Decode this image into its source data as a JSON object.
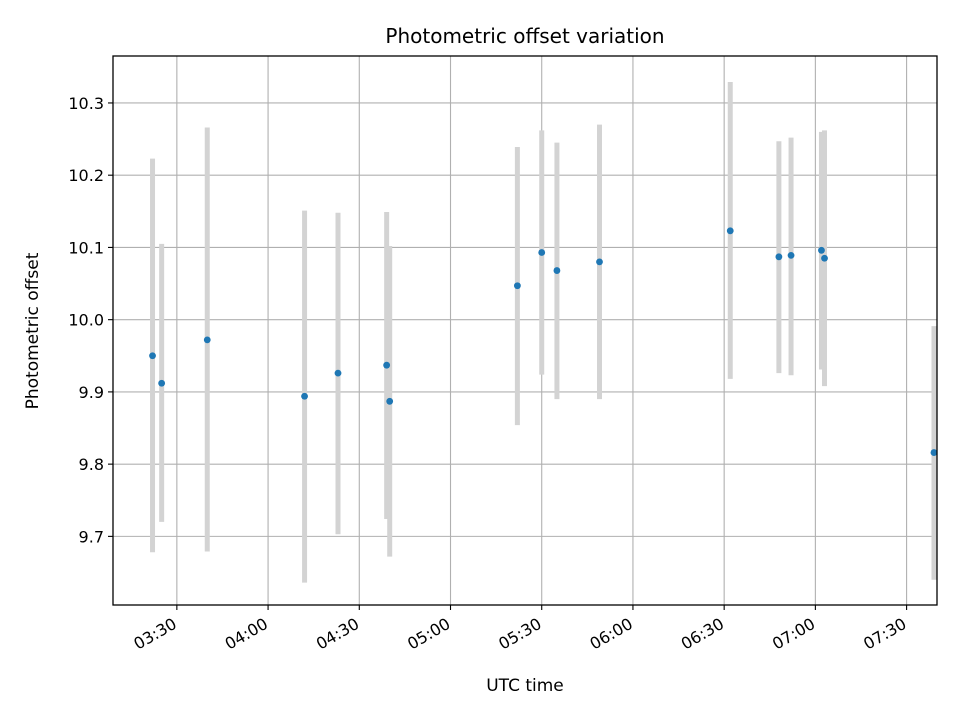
{
  "chart_data": {
    "type": "scatter",
    "title": "Photometric offset variation",
    "xlabel": "UTC time",
    "ylabel": "Photometric offset",
    "grid": true,
    "ylim": [
      9.605,
      10.365
    ],
    "xlim": [
      "03:09",
      "07:40"
    ],
    "x_ticks": [
      "03:30",
      "04:00",
      "04:30",
      "05:00",
      "05:30",
      "06:00",
      "06:30",
      "07:00",
      "07:30"
    ],
    "y_ticks": [
      "9.7",
      "9.8",
      "9.9",
      "10.0",
      "10.1",
      "10.2",
      "10.3"
    ],
    "marker_color": "#1f77b4",
    "errorbar_color": "#d3d3d3",
    "points": [
      {
        "x": "03:22",
        "y": 9.95,
        "ylow": 9.678,
        "yhigh": 10.223
      },
      {
        "x": "03:25",
        "y": 9.912,
        "ylow": 9.72,
        "yhigh": 10.105
      },
      {
        "x": "03:40",
        "y": 9.972,
        "ylow": 9.679,
        "yhigh": 10.266
      },
      {
        "x": "04:12",
        "y": 9.894,
        "ylow": 9.636,
        "yhigh": 10.151
      },
      {
        "x": "04:23",
        "y": 9.926,
        "ylow": 9.703,
        "yhigh": 10.148
      },
      {
        "x": "04:39",
        "y": 9.937,
        "ylow": 9.724,
        "yhigh": 10.149
      },
      {
        "x": "04:40",
        "y": 9.887,
        "ylow": 9.672,
        "yhigh": 10.102
      },
      {
        "x": "05:22",
        "y": 10.047,
        "ylow": 9.854,
        "yhigh": 10.239
      },
      {
        "x": "05:30",
        "y": 10.093,
        "ylow": 9.924,
        "yhigh": 10.262
      },
      {
        "x": "05:35",
        "y": 10.068,
        "ylow": 9.89,
        "yhigh": 10.245
      },
      {
        "x": "05:49",
        "y": 10.08,
        "ylow": 9.89,
        "yhigh": 10.27
      },
      {
        "x": "06:32",
        "y": 10.123,
        "ylow": 9.918,
        "yhigh": 10.329
      },
      {
        "x": "06:48",
        "y": 10.087,
        "ylow": 9.926,
        "yhigh": 10.247
      },
      {
        "x": "06:52",
        "y": 10.089,
        "ylow": 9.923,
        "yhigh": 10.252
      },
      {
        "x": "07:02",
        "y": 10.096,
        "ylow": 9.931,
        "yhigh": 10.26
      },
      {
        "x": "07:03",
        "y": 10.085,
        "ylow": 9.908,
        "yhigh": 10.262
      },
      {
        "x": "07:39",
        "y": 9.816,
        "ylow": 9.64,
        "yhigh": 9.991
      }
    ]
  }
}
